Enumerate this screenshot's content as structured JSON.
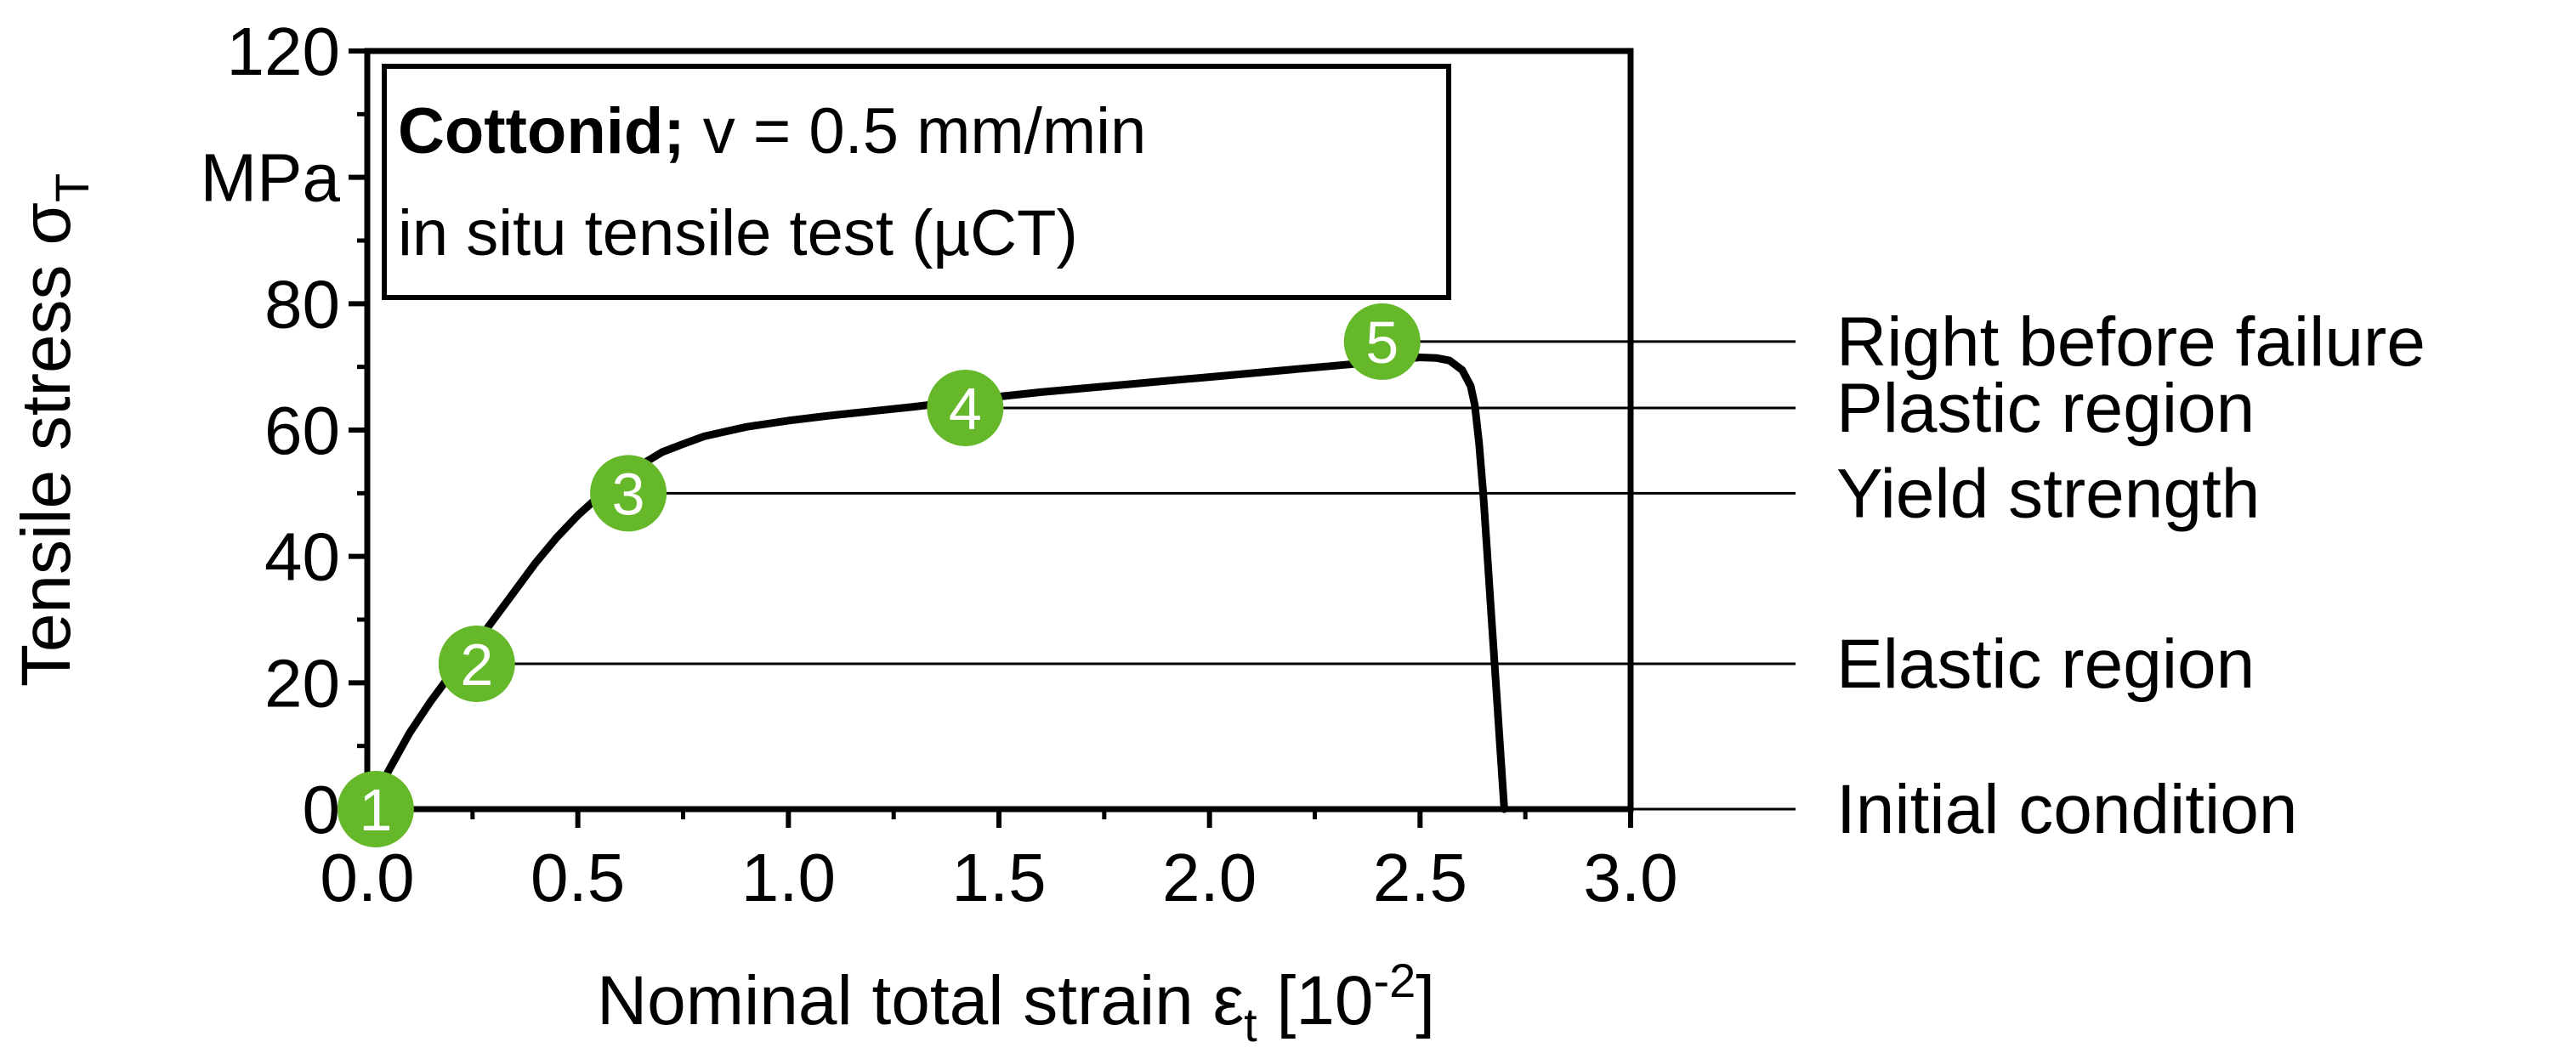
{
  "chart_data": {
    "type": "line",
    "title": "",
    "xlabel": "Nominal total strain ε",
    "xlabel_sub": "t",
    "xlabel_unit_open": " [10",
    "xlabel_unit_sup": "-2",
    "xlabel_unit_close": "]",
    "ylabel": "Tensile stress σ",
    "ylabel_sub": "T",
    "yunit": "MPa",
    "xlim": [
      0.0,
      3.0
    ],
    "ylim": [
      0,
      120
    ],
    "xticks": [
      "0.0",
      "0.5",
      "1.0",
      "1.5",
      "2.0",
      "2.5",
      "3.0"
    ],
    "yticks": [
      "0",
      "20",
      "40",
      "60",
      "80",
      "120"
    ],
    "ytick_values": [
      0,
      20,
      40,
      60,
      80,
      120
    ],
    "grid": false,
    "legend_box": {
      "line1_bold": "Cottonid;",
      "line1_rest": " v = 0.5 mm/min",
      "line2": "in situ tensile test (µCT)",
      "placement": "top-left"
    },
    "series": [
      {
        "x": [
          0.0,
          0.05,
          0.1,
          0.15,
          0.2,
          0.25,
          0.3,
          0.35,
          0.4,
          0.45,
          0.5,
          0.55,
          0.6,
          0.65,
          0.7,
          0.75,
          0.8,
          0.9,
          1.0,
          1.1,
          1.2,
          1.3,
          1.4,
          1.5,
          1.6,
          1.7,
          1.8,
          1.9,
          2.0,
          2.1,
          2.2,
          2.3,
          2.4,
          2.45,
          2.5,
          2.54,
          2.57,
          2.6,
          2.62,
          2.63,
          2.64,
          2.65,
          2.66,
          2.67,
          2.68,
          2.69,
          2.7
        ],
        "y": [
          0,
          6,
          12,
          17,
          21.5,
          25.5,
          30,
          34.5,
          39,
          43,
          46.5,
          49.5,
          52,
          54.5,
          56.5,
          57.8,
          59,
          60.5,
          61.5,
          62.3,
          63,
          63.7,
          64.5,
          65.3,
          66,
          66.6,
          67.2,
          67.8,
          68.4,
          69,
          69.6,
          70.2,
          70.8,
          71.2,
          71.5,
          71.4,
          71,
          69.5,
          67,
          64,
          58,
          50,
          40,
          30,
          20,
          10,
          0
        ]
      }
    ],
    "stages": [
      {
        "num": "1",
        "x": 0.02,
        "y": 0,
        "label": "Initial condition"
      },
      {
        "num": "2",
        "x": 0.26,
        "y": 23,
        "label": "Elastic region"
      },
      {
        "num": "3",
        "x": 0.62,
        "y": 50,
        "label": "Yield strength"
      },
      {
        "num": "4",
        "x": 1.42,
        "y": 63.5,
        "label": "Plastic region"
      },
      {
        "num": "5",
        "x": 2.41,
        "y": 74,
        "label": "Right before failure"
      }
    ],
    "colors": {
      "curve": "#000000",
      "marker": "#66b82b",
      "marker_text": "#ffffff"
    }
  }
}
